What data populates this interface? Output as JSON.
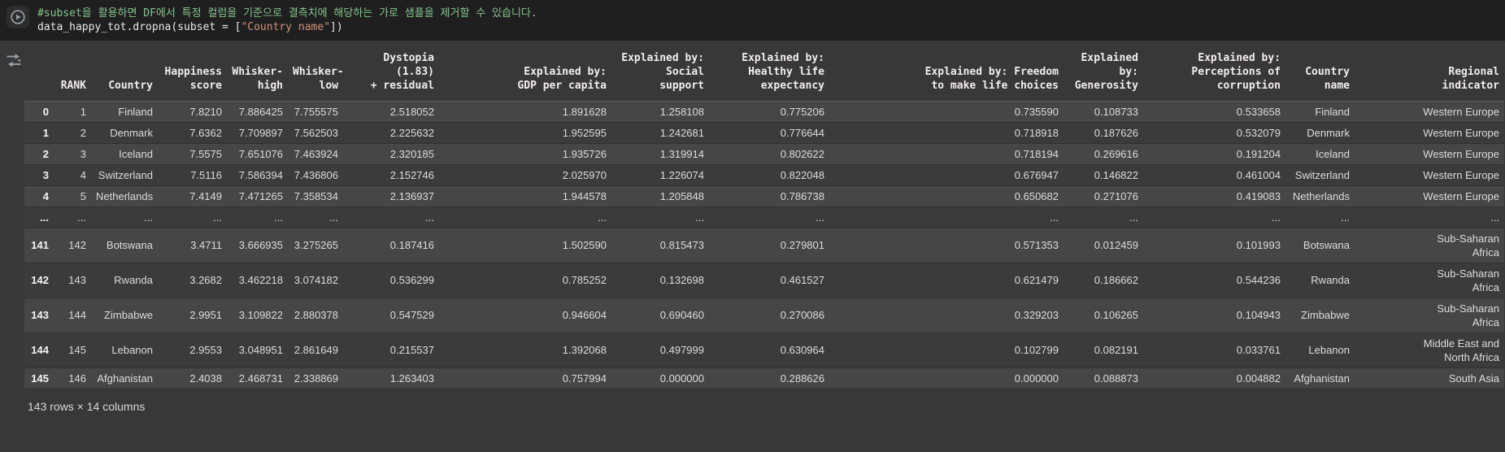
{
  "code_cell": {
    "comment": "#subset을 활용하면 DF에서 특정 컬럼을 기준으로 결측치에 해당하는 가로 샘플을 제거할 수 있습니다.",
    "code_pre": "data_happy_tot.dropna(subset = [",
    "code_string": "\"Country name\"",
    "code_post": "])"
  },
  "icons": {
    "run_button": "play-circle",
    "interactive_table": "filter-convert-arrows"
  },
  "colors": {
    "code_background": "#1f1f1f",
    "output_background": "#383838",
    "row_light": "#464646",
    "row_dark": "#3b3b3b",
    "comment_green": "#85c48d",
    "string_orange": "#ce9178",
    "icon_gray": "#9aa0a6"
  },
  "table": {
    "index_header": "",
    "columns": [
      "RANK",
      "Country",
      "Happiness\nscore",
      "Whisker-\nhigh",
      "Whisker-\nlow",
      "Dystopia (1.83)\n+ residual",
      "Explained by:\nGDP per capita",
      "Explained by:\nSocial support",
      "Explained by:\nHealthy life\nexpectancy",
      "Explained by: Freedom\nto make life choices",
      "Explained by:\nGenerosity",
      "Explained by:\nPerceptions of\ncorruption",
      "Country\nname",
      "Regional\nindicator"
    ],
    "rows": [
      {
        "index": "0",
        "cells": [
          "1",
          "Finland",
          "7.8210",
          "7.886425",
          "7.755575",
          "2.518052",
          "1.891628",
          "1.258108",
          "0.775206",
          "0.735590",
          "0.108733",
          "0.533658",
          "Finland",
          "Western Europe"
        ]
      },
      {
        "index": "1",
        "cells": [
          "2",
          "Denmark",
          "7.6362",
          "7.709897",
          "7.562503",
          "2.225632",
          "1.952595",
          "1.242681",
          "0.776644",
          "0.718918",
          "0.187626",
          "0.532079",
          "Denmark",
          "Western Europe"
        ]
      },
      {
        "index": "2",
        "cells": [
          "3",
          "Iceland",
          "7.5575",
          "7.651076",
          "7.463924",
          "2.320185",
          "1.935726",
          "1.319914",
          "0.802622",
          "0.718194",
          "0.269616",
          "0.191204",
          "Iceland",
          "Western Europe"
        ]
      },
      {
        "index": "3",
        "cells": [
          "4",
          "Switzerland",
          "7.5116",
          "7.586394",
          "7.436806",
          "2.152746",
          "2.025970",
          "1.226074",
          "0.822048",
          "0.676947",
          "0.146822",
          "0.461004",
          "Switzerland",
          "Western Europe"
        ]
      },
      {
        "index": "4",
        "cells": [
          "5",
          "Netherlands",
          "7.4149",
          "7.471265",
          "7.358534",
          "2.136937",
          "1.944578",
          "1.205848",
          "0.786738",
          "0.650682",
          "0.271076",
          "0.419083",
          "Netherlands",
          "Western Europe"
        ]
      },
      {
        "index": "...",
        "cells": [
          "...",
          "...",
          "...",
          "...",
          "...",
          "...",
          "...",
          "...",
          "...",
          "...",
          "...",
          "...",
          "...",
          "..."
        ]
      },
      {
        "index": "141",
        "cells": [
          "142",
          "Botswana",
          "3.4711",
          "3.666935",
          "3.275265",
          "0.187416",
          "1.502590",
          "0.815473",
          "0.279801",
          "0.571353",
          "0.012459",
          "0.101993",
          "Botswana",
          "Sub-Saharan\nAfrica"
        ]
      },
      {
        "index": "142",
        "cells": [
          "143",
          "Rwanda",
          "3.2682",
          "3.462218",
          "3.074182",
          "0.536299",
          "0.785252",
          "0.132698",
          "0.461527",
          "0.621479",
          "0.186662",
          "0.544236",
          "Rwanda",
          "Sub-Saharan\nAfrica"
        ]
      },
      {
        "index": "143",
        "cells": [
          "144",
          "Zimbabwe",
          "2.9951",
          "3.109822",
          "2.880378",
          "0.547529",
          "0.946604",
          "0.690460",
          "0.270086",
          "0.329203",
          "0.106265",
          "0.104943",
          "Zimbabwe",
          "Sub-Saharan\nAfrica"
        ]
      },
      {
        "index": "144",
        "cells": [
          "145",
          "Lebanon",
          "2.9553",
          "3.048951",
          "2.861649",
          "0.215537",
          "1.392068",
          "0.497999",
          "0.630964",
          "0.102799",
          "0.082191",
          "0.033761",
          "Lebanon",
          "Middle East and\nNorth Africa"
        ]
      },
      {
        "index": "145",
        "cells": [
          "146",
          "Afghanistan",
          "2.4038",
          "2.468731",
          "2.338869",
          "1.263403",
          "0.757994",
          "0.000000",
          "0.288626",
          "0.000000",
          "0.088873",
          "0.004882",
          "Afghanistan",
          "South Asia"
        ]
      }
    ],
    "footer": "143 rows × 14 columns"
  }
}
